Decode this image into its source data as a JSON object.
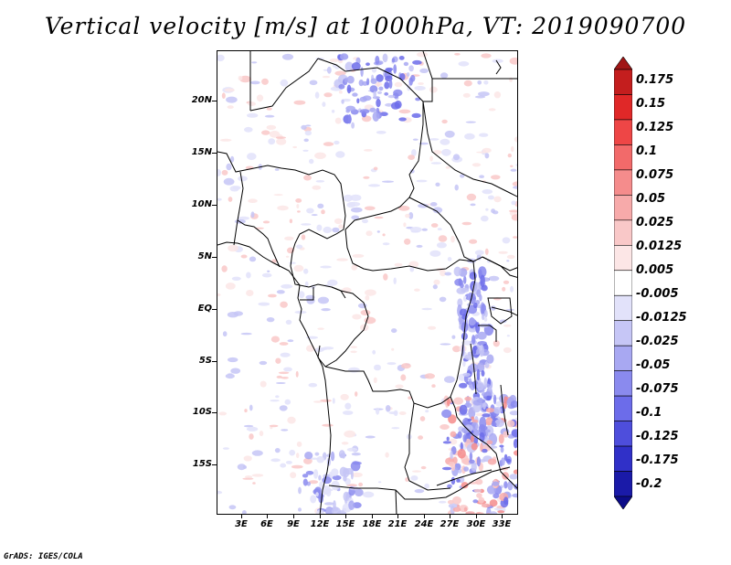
{
  "title": "Vertical velocity [m/s] at 1000hPa, VT: 2019090700",
  "map": {
    "lat_labels": [
      "20N",
      "15N",
      "10N",
      "5N",
      "EQ",
      "5S",
      "10S",
      "15S"
    ],
    "lon_labels": [
      "3E",
      "6E",
      "9E",
      "12E",
      "15E",
      "18E",
      "21E",
      "24E",
      "27E",
      "30E",
      "33E"
    ]
  },
  "colorbar": {
    "labels": [
      "0.175",
      "0.15",
      "0.125",
      "0.1",
      "0.075",
      "0.05",
      "0.025",
      "0.0125",
      "0.005",
      "-0.005",
      "-0.0125",
      "-0.025",
      "-0.05",
      "-0.075",
      "-0.1",
      "-0.125",
      "-0.175",
      "-0.2"
    ],
    "colors": [
      "#a01616",
      "#c41e1e",
      "#e02828",
      "#ee4646",
      "#f26a6a",
      "#f58c8c",
      "#f7aaaa",
      "#f9c8c8",
      "#fce6e6",
      "#ffffff",
      "#e2e2fa",
      "#c6c6f6",
      "#a8a8f2",
      "#8a8aee",
      "#6c6cea",
      "#4e4edc",
      "#3030c8",
      "#1a1aa8",
      "#0c0c88"
    ]
  },
  "credit": "GrADS: IGES/COLA"
}
